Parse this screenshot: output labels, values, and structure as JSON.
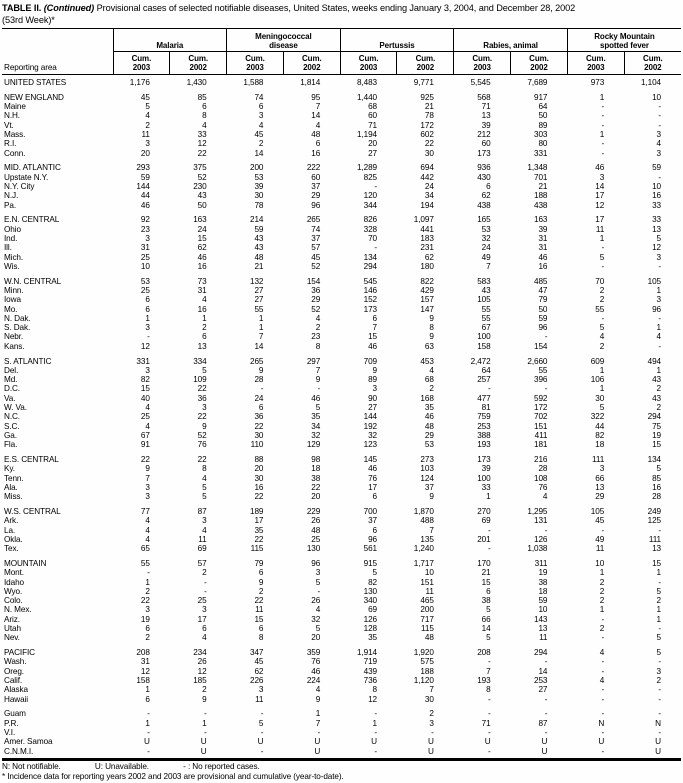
{
  "title": {
    "label": "TABLE II.",
    "continued": "(Continued)",
    "text": "Provisional cases of selected notifiable diseases, United States, weeks ending January 3, 2004, and December 28, 2002",
    "week": "(53rd Week)*"
  },
  "header": {
    "reporting_area": "Reporting area",
    "col2003": "Cum.\n2003",
    "col2002": "Cum.\n2002",
    "groups": [
      {
        "name": "Malaria"
      },
      {
        "name": "Meningococcal\ndisease"
      },
      {
        "name": "Pertussis"
      },
      {
        "name": "Rabies, animal"
      },
      {
        "name": "Rocky Mountain\nspotted fever"
      }
    ]
  },
  "sections": [
    {
      "rows": [
        {
          "area": "UNITED STATES",
          "v": [
            "1,176",
            "1,430",
            "1,588",
            "1,814",
            "8,483",
            "9,771",
            "5,545",
            "7,689",
            "973",
            "1,104"
          ]
        }
      ]
    },
    {
      "rows": [
        {
          "area": "NEW ENGLAND",
          "v": [
            "45",
            "85",
            "74",
            "95",
            "1,440",
            "925",
            "568",
            "917",
            "1",
            "10"
          ]
        },
        {
          "area": "Maine",
          "v": [
            "5",
            "6",
            "6",
            "7",
            "68",
            "21",
            "71",
            "64",
            "-",
            "-"
          ]
        },
        {
          "area": "N.H.",
          "v": [
            "4",
            "8",
            "3",
            "14",
            "60",
            "78",
            "13",
            "50",
            "-",
            "-"
          ]
        },
        {
          "area": "Vt.",
          "v": [
            "2",
            "4",
            "4",
            "4",
            "71",
            "172",
            "39",
            "89",
            "-",
            "-"
          ]
        },
        {
          "area": "Mass.",
          "v": [
            "11",
            "33",
            "45",
            "48",
            "1,194",
            "602",
            "212",
            "303",
            "1",
            "3"
          ]
        },
        {
          "area": "R.I.",
          "v": [
            "3",
            "12",
            "2",
            "6",
            "20",
            "22",
            "60",
            "80",
            "-",
            "4"
          ]
        },
        {
          "area": "Conn.",
          "v": [
            "20",
            "22",
            "14",
            "16",
            "27",
            "30",
            "173",
            "331",
            "-",
            "3"
          ]
        }
      ]
    },
    {
      "rows": [
        {
          "area": "MID. ATLANTIC",
          "v": [
            "293",
            "375",
            "200",
            "222",
            "1,289",
            "694",
            "936",
            "1,348",
            "46",
            "59"
          ]
        },
        {
          "area": "Upstate N.Y.",
          "v": [
            "59",
            "52",
            "53",
            "60",
            "825",
            "442",
            "430",
            "701",
            "3",
            "-"
          ]
        },
        {
          "area": "N.Y. City",
          "v": [
            "144",
            "230",
            "39",
            "37",
            "-",
            "24",
            "6",
            "21",
            "14",
            "10"
          ]
        },
        {
          "area": "N.J.",
          "v": [
            "44",
            "43",
            "30",
            "29",
            "120",
            "34",
            "62",
            "188",
            "17",
            "16"
          ]
        },
        {
          "area": "Pa.",
          "v": [
            "46",
            "50",
            "78",
            "96",
            "344",
            "194",
            "438",
            "438",
            "12",
            "33"
          ]
        }
      ]
    },
    {
      "rows": [
        {
          "area": "E.N. CENTRAL",
          "v": [
            "92",
            "163",
            "214",
            "265",
            "826",
            "1,097",
            "165",
            "163",
            "17",
            "33"
          ]
        },
        {
          "area": "Ohio",
          "v": [
            "23",
            "24",
            "59",
            "74",
            "328",
            "441",
            "53",
            "39",
            "11",
            "13"
          ]
        },
        {
          "area": "Ind.",
          "v": [
            "3",
            "15",
            "43",
            "37",
            "70",
            "183",
            "32",
            "31",
            "1",
            "5"
          ]
        },
        {
          "area": "Ill.",
          "v": [
            "31",
            "62",
            "43",
            "57",
            "-",
            "231",
            "24",
            "31",
            "-",
            "12"
          ]
        },
        {
          "area": "Mich.",
          "v": [
            "25",
            "46",
            "48",
            "45",
            "134",
            "62",
            "49",
            "46",
            "5",
            "3"
          ]
        },
        {
          "area": "Wis.",
          "v": [
            "10",
            "16",
            "21",
            "52",
            "294",
            "180",
            "7",
            "16",
            "-",
            "-"
          ]
        }
      ]
    },
    {
      "rows": [
        {
          "area": "W.N. CENTRAL",
          "v": [
            "53",
            "73",
            "132",
            "154",
            "545",
            "822",
            "583",
            "485",
            "70",
            "105"
          ]
        },
        {
          "area": "Minn.",
          "v": [
            "25",
            "31",
            "27",
            "36",
            "146",
            "429",
            "43",
            "47",
            "2",
            "1"
          ]
        },
        {
          "area": "Iowa",
          "v": [
            "6",
            "4",
            "27",
            "29",
            "152",
            "157",
            "105",
            "79",
            "2",
            "3"
          ]
        },
        {
          "area": "Mo.",
          "v": [
            "6",
            "16",
            "55",
            "52",
            "173",
            "147",
            "55",
            "50",
            "55",
            "96"
          ]
        },
        {
          "area": "N. Dak.",
          "v": [
            "1",
            "1",
            "1",
            "4",
            "6",
            "9",
            "55",
            "59",
            "-",
            "-"
          ]
        },
        {
          "area": "S. Dak.",
          "v": [
            "3",
            "2",
            "1",
            "2",
            "7",
            "8",
            "67",
            "96",
            "5",
            "1"
          ]
        },
        {
          "area": "Nebr.",
          "v": [
            "-",
            "6",
            "7",
            "23",
            "15",
            "9",
            "100",
            "-",
            "4",
            "4"
          ]
        },
        {
          "area": "Kans.",
          "v": [
            "12",
            "13",
            "14",
            "8",
            "46",
            "63",
            "158",
            "154",
            "2",
            "-"
          ]
        }
      ]
    },
    {
      "rows": [
        {
          "area": "S. ATLANTIC",
          "v": [
            "331",
            "334",
            "265",
            "297",
            "709",
            "453",
            "2,472",
            "2,660",
            "609",
            "494"
          ]
        },
        {
          "area": "Del.",
          "v": [
            "3",
            "5",
            "9",
            "7",
            "9",
            "4",
            "64",
            "55",
            "1",
            "1"
          ]
        },
        {
          "area": "Md.",
          "v": [
            "82",
            "109",
            "28",
            "9",
            "89",
            "68",
            "257",
            "396",
            "106",
            "43"
          ]
        },
        {
          "area": "D.C.",
          "v": [
            "15",
            "22",
            "-",
            "-",
            "3",
            "2",
            "-",
            "-",
            "1",
            "2"
          ]
        },
        {
          "area": "Va.",
          "v": [
            "40",
            "36",
            "24",
            "46",
            "90",
            "168",
            "477",
            "592",
            "30",
            "43"
          ]
        },
        {
          "area": "W. Va.",
          "v": [
            "4",
            "3",
            "6",
            "5",
            "27",
            "35",
            "81",
            "172",
            "5",
            "2"
          ]
        },
        {
          "area": "N.C.",
          "v": [
            "25",
            "22",
            "36",
            "35",
            "144",
            "46",
            "759",
            "702",
            "322",
            "294"
          ]
        },
        {
          "area": "S.C.",
          "v": [
            "4",
            "9",
            "22",
            "34",
            "192",
            "48",
            "253",
            "151",
            "44",
            "75"
          ]
        },
        {
          "area": "Ga.",
          "v": [
            "67",
            "52",
            "30",
            "32",
            "32",
            "29",
            "388",
            "411",
            "82",
            "19"
          ]
        },
        {
          "area": "Fla.",
          "v": [
            "91",
            "76",
            "110",
            "129",
            "123",
            "53",
            "193",
            "181",
            "18",
            "15"
          ]
        }
      ]
    },
    {
      "rows": [
        {
          "area": "E.S. CENTRAL",
          "v": [
            "22",
            "22",
            "88",
            "98",
            "145",
            "273",
            "173",
            "216",
            "111",
            "134"
          ]
        },
        {
          "area": "Ky.",
          "v": [
            "9",
            "8",
            "20",
            "18",
            "46",
            "103",
            "39",
            "28",
            "3",
            "5"
          ]
        },
        {
          "area": "Tenn.",
          "v": [
            "7",
            "4",
            "30",
            "38",
            "76",
            "124",
            "100",
            "108",
            "66",
            "85"
          ]
        },
        {
          "area": "Ala.",
          "v": [
            "3",
            "5",
            "16",
            "22",
            "17",
            "37",
            "33",
            "76",
            "13",
            "16"
          ]
        },
        {
          "area": "Miss.",
          "v": [
            "3",
            "5",
            "22",
            "20",
            "6",
            "9",
            "1",
            "4",
            "29",
            "28"
          ]
        }
      ]
    },
    {
      "rows": [
        {
          "area": "W.S. CENTRAL",
          "v": [
            "77",
            "87",
            "189",
            "229",
            "700",
            "1,870",
            "270",
            "1,295",
            "105",
            "249"
          ]
        },
        {
          "area": "Ark.",
          "v": [
            "4",
            "3",
            "17",
            "26",
            "37",
            "488",
            "69",
            "131",
            "45",
            "125"
          ]
        },
        {
          "area": "La.",
          "v": [
            "4",
            "4",
            "35",
            "48",
            "6",
            "7",
            "-",
            "-",
            "-",
            "-"
          ]
        },
        {
          "area": "Okla.",
          "v": [
            "4",
            "11",
            "22",
            "25",
            "96",
            "135",
            "201",
            "126",
            "49",
            "111"
          ]
        },
        {
          "area": "Tex.",
          "v": [
            "65",
            "69",
            "115",
            "130",
            "561",
            "1,240",
            "-",
            "1,038",
            "11",
            "13"
          ]
        }
      ]
    },
    {
      "rows": [
        {
          "area": "MOUNTAIN",
          "v": [
            "55",
            "57",
            "79",
            "96",
            "915",
            "1,717",
            "170",
            "311",
            "10",
            "15"
          ]
        },
        {
          "area": "Mont.",
          "v": [
            "-",
            "2",
            "6",
            "3",
            "5",
            "10",
            "21",
            "19",
            "1",
            "1"
          ]
        },
        {
          "area": "Idaho",
          "v": [
            "1",
            "-",
            "9",
            "5",
            "82",
            "151",
            "15",
            "38",
            "2",
            "-"
          ]
        },
        {
          "area": "Wyo.",
          "v": [
            "2",
            "-",
            "2",
            "-",
            "130",
            "11",
            "6",
            "18",
            "2",
            "5"
          ]
        },
        {
          "area": "Colo.",
          "v": [
            "22",
            "25",
            "22",
            "26",
            "340",
            "465",
            "38",
            "59",
            "2",
            "2"
          ]
        },
        {
          "area": "N. Mex.",
          "v": [
            "3",
            "3",
            "11",
            "4",
            "69",
            "200",
            "5",
            "10",
            "1",
            "1"
          ]
        },
        {
          "area": "Ariz.",
          "v": [
            "19",
            "17",
            "15",
            "32",
            "126",
            "717",
            "66",
            "143",
            "-",
            "1"
          ]
        },
        {
          "area": "Utah",
          "v": [
            "6",
            "6",
            "6",
            "5",
            "128",
            "115",
            "14",
            "13",
            "2",
            "-"
          ]
        },
        {
          "area": "Nev.",
          "v": [
            "2",
            "4",
            "8",
            "20",
            "35",
            "48",
            "5",
            "11",
            "-",
            "5"
          ]
        }
      ]
    },
    {
      "rows": [
        {
          "area": "PACIFIC",
          "v": [
            "208",
            "234",
            "347",
            "359",
            "1,914",
            "1,920",
            "208",
            "294",
            "4",
            "5"
          ]
        },
        {
          "area": "Wash.",
          "v": [
            "31",
            "26",
            "45",
            "76",
            "719",
            "575",
            "-",
            "-",
            "-",
            "-"
          ]
        },
        {
          "area": "Oreg.",
          "v": [
            "12",
            "12",
            "62",
            "46",
            "439",
            "188",
            "7",
            "14",
            "-",
            "3"
          ]
        },
        {
          "area": "Calif.",
          "v": [
            "158",
            "185",
            "226",
            "224",
            "736",
            "1,120",
            "193",
            "253",
            "4",
            "2"
          ]
        },
        {
          "area": "Alaska",
          "v": [
            "1",
            "2",
            "3",
            "4",
            "8",
            "7",
            "8",
            "27",
            "-",
            "-"
          ]
        },
        {
          "area": "Hawaii",
          "v": [
            "6",
            "9",
            "11",
            "9",
            "12",
            "30",
            "-",
            "-",
            "-",
            "-"
          ]
        }
      ]
    },
    {
      "rows": [
        {
          "area": "Guam",
          "v": [
            "-",
            "-",
            "-",
            "1",
            "-",
            "2",
            "-",
            "-",
            "-",
            "-"
          ]
        },
        {
          "area": "P.R.",
          "v": [
            "1",
            "1",
            "5",
            "7",
            "1",
            "3",
            "71",
            "87",
            "N",
            "N"
          ]
        },
        {
          "area": "V.I.",
          "v": [
            "-",
            "-",
            "-",
            "-",
            "-",
            "-",
            "-",
            "-",
            "-",
            "-"
          ]
        },
        {
          "area": "Amer. Samoa",
          "v": [
            "U",
            "U",
            "U",
            "U",
            "U",
            "U",
            "U",
            "U",
            "U",
            "U"
          ]
        },
        {
          "area": "C.N.M.I.",
          "v": [
            "-",
            "U",
            "-",
            "U",
            "-",
            "U",
            "-",
            "U",
            "-",
            "U"
          ]
        }
      ]
    }
  ],
  "footnotes": {
    "legend": [
      "N: Not notifiable.",
      "U: Unavailable.",
      "- : No reported cases."
    ],
    "note": "* Incidence data for reporting years 2002 and 2003 are provisional and cumulative (year-to-date)."
  }
}
